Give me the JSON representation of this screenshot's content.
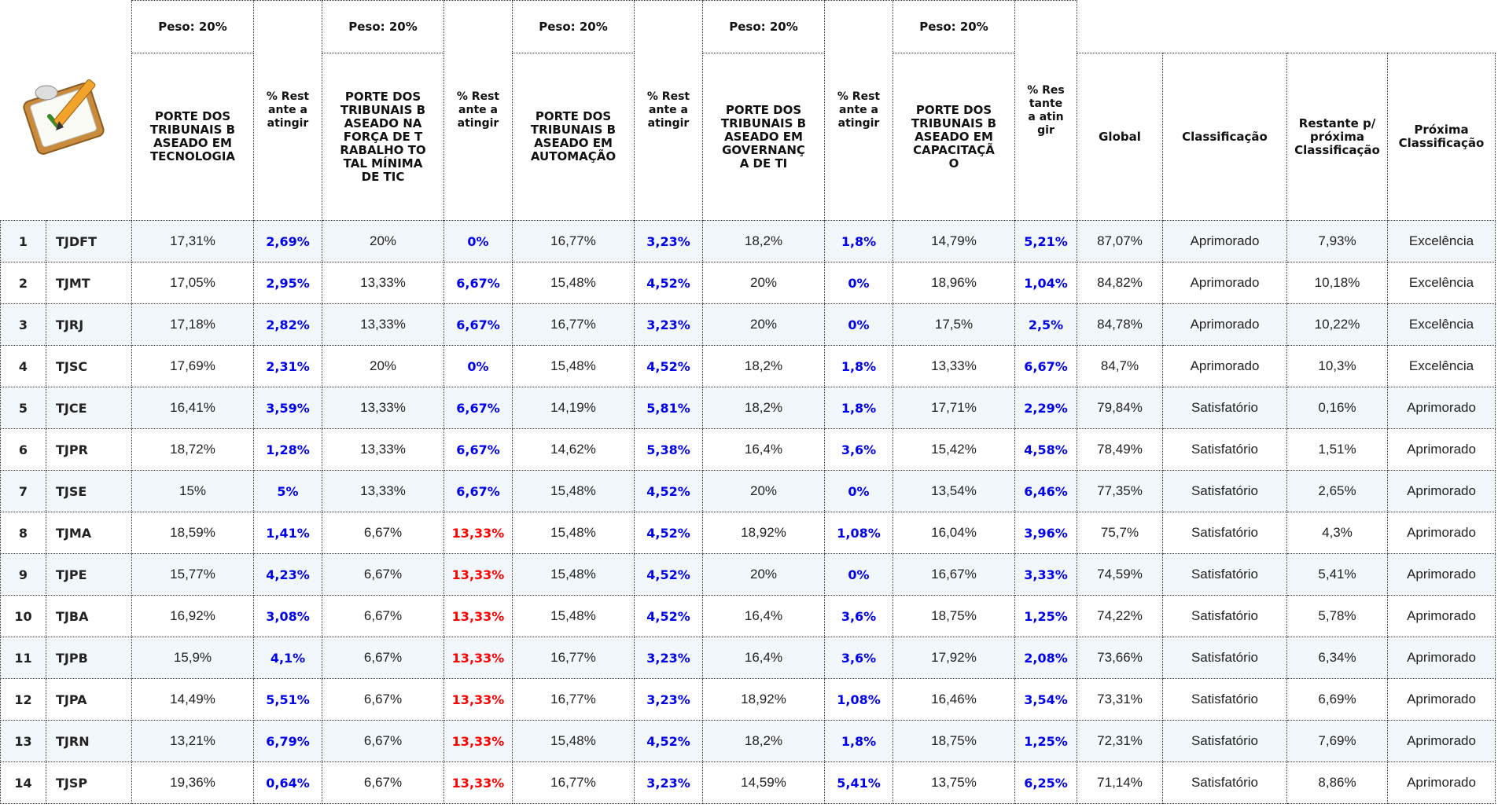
{
  "style": {
    "remaining_color": "#0000ee",
    "alert_color": "#ff0000",
    "stripe_color": "#f2f7fb"
  },
  "header": {
    "weights": [
      "Peso: 20%",
      "Peso: 20%",
      "Peso: 20%",
      "Peso: 20%",
      "Peso: 20%"
    ],
    "criteria": [
      "PORTE DOS TRIBUNAIS BASEADO EM TECNOLOGIA",
      "PORTE DOS TRIBUNAIS BASEADO NA FORÇA DE TRABALHO TOTAL MÍNIMA DE TIC",
      "PORTE DOS TRIBUNAIS BASEADO EM AUTOMAÇÃO",
      "PORTE DOS TRIBUNAIS BASEADO EM GOVERNANÇA DE TI",
      "PORTE DOS TRIBUNAIS BASEADO EM CAPACITAÇÃO"
    ],
    "remaining": [
      "% Restante a atingir",
      "% Restante a atingir",
      "% Restante a atingir",
      "% Restante a atingir",
      "% Restante a atingir"
    ],
    "summary": [
      "Global",
      "Classificação",
      "Restante p/ próxima Classificação",
      "Próxima Classificação"
    ]
  },
  "rows": [
    {
      "cells": [
        1,
        "TJDFT",
        "17,31%",
        "2,69%",
        "20%",
        "0%",
        "16,77%",
        "3,23%",
        "18,2%",
        "1,8%",
        "14,79%",
        "5,21%",
        "87,07%",
        "Aprimorado",
        "7,93%",
        "Excelência"
      ]
    },
    {
      "cells": [
        2,
        "TJMT",
        "17,05%",
        "2,95%",
        "13,33%",
        "6,67%",
        "15,48%",
        "4,52%",
        "20%",
        "0%",
        "18,96%",
        "1,04%",
        "84,82%",
        "Aprimorado",
        "10,18%",
        "Excelência"
      ]
    },
    {
      "cells": [
        3,
        "TJRJ",
        "17,18%",
        "2,82%",
        "13,33%",
        "6,67%",
        "16,77%",
        "3,23%",
        "20%",
        "0%",
        "17,5%",
        "2,5%",
        "84,78%",
        "Aprimorado",
        "10,22%",
        "Excelência"
      ]
    },
    {
      "cells": [
        4,
        "TJSC",
        "17,69%",
        "2,31%",
        "20%",
        "0%",
        "15,48%",
        "4,52%",
        "18,2%",
        "1,8%",
        "13,33%",
        "6,67%",
        "84,7%",
        "Aprimorado",
        "10,3%",
        "Excelência"
      ]
    },
    {
      "cells": [
        5,
        "TJCE",
        "16,41%",
        "3,59%",
        "13,33%",
        "6,67%",
        "14,19%",
        "5,81%",
        "18,2%",
        "1,8%",
        "17,71%",
        "2,29%",
        "79,84%",
        "Satisfatório",
        "0,16%",
        "Aprimorado"
      ]
    },
    {
      "cells": [
        6,
        "TJPR",
        "18,72%",
        "1,28%",
        "13,33%",
        "6,67%",
        "14,62%",
        "5,38%",
        "16,4%",
        "3,6%",
        "15,42%",
        "4,58%",
        "78,49%",
        "Satisfatório",
        "1,51%",
        "Aprimorado"
      ]
    },
    {
      "cells": [
        7,
        "TJSE",
        "15%",
        "5%",
        "13,33%",
        "6,67%",
        "15,48%",
        "4,52%",
        "20%",
        "0%",
        "13,54%",
        "6,46%",
        "77,35%",
        "Satisfatório",
        "2,65%",
        "Aprimorado"
      ]
    },
    {
      "cells": [
        8,
        "TJMA",
        "18,59%",
        "1,41%",
        "6,67%",
        "13,33%",
        "15,48%",
        "4,52%",
        "18,92%",
        "1,08%",
        "16,04%",
        "3,96%",
        "75,7%",
        "Satisfatório",
        "4,3%",
        "Aprimorado"
      ],
      "alert": [
        5
      ]
    },
    {
      "cells": [
        9,
        "TJPE",
        "15,77%",
        "4,23%",
        "6,67%",
        "13,33%",
        "15,48%",
        "4,52%",
        "20%",
        "0%",
        "16,67%",
        "3,33%",
        "74,59%",
        "Satisfatório",
        "5,41%",
        "Aprimorado"
      ],
      "alert": [
        5
      ]
    },
    {
      "cells": [
        10,
        "TJBA",
        "16,92%",
        "3,08%",
        "6,67%",
        "13,33%",
        "15,48%",
        "4,52%",
        "16,4%",
        "3,6%",
        "18,75%",
        "1,25%",
        "74,22%",
        "Satisfatório",
        "5,78%",
        "Aprimorado"
      ],
      "alert": [
        5
      ]
    },
    {
      "cells": [
        11,
        "TJPB",
        "15,9%",
        "4,1%",
        "6,67%",
        "13,33%",
        "16,77%",
        "3,23%",
        "16,4%",
        "3,6%",
        "17,92%",
        "2,08%",
        "73,66%",
        "Satisfatório",
        "6,34%",
        "Aprimorado"
      ],
      "alert": [
        5
      ]
    },
    {
      "cells": [
        12,
        "TJPA",
        "14,49%",
        "5,51%",
        "6,67%",
        "13,33%",
        "16,77%",
        "3,23%",
        "18,92%",
        "1,08%",
        "16,46%",
        "3,54%",
        "73,31%",
        "Satisfatório",
        "6,69%",
        "Aprimorado"
      ],
      "alert": [
        5
      ]
    },
    {
      "cells": [
        13,
        "TJRN",
        "13,21%",
        "6,79%",
        "6,67%",
        "13,33%",
        "15,48%",
        "4,52%",
        "18,2%",
        "1,8%",
        "18,75%",
        "1,25%",
        "72,31%",
        "Satisfatório",
        "7,69%",
        "Aprimorado"
      ],
      "alert": [
        5
      ]
    },
    {
      "cells": [
        14,
        "TJSP",
        "19,36%",
        "0,64%",
        "6,67%",
        "13,33%",
        "16,77%",
        "3,23%",
        "14,59%",
        "5,41%",
        "13,75%",
        "6,25%",
        "71,14%",
        "Satisfatório",
        "8,86%",
        "Aprimorado"
      ],
      "alert": [
        5
      ]
    }
  ]
}
